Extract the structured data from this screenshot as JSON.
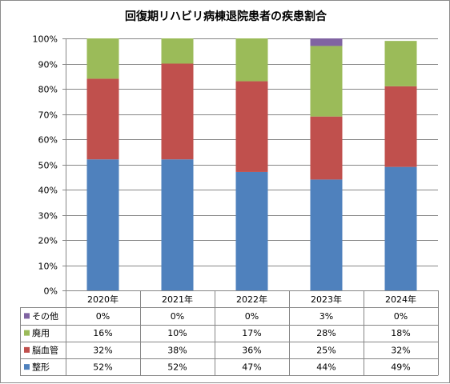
{
  "chart_data": {
    "type": "bar",
    "stacked": true,
    "percent": true,
    "title": "回復期リハビリ病棟退院患者の疾患割合",
    "categories": [
      "2020年",
      "2021年",
      "2022年",
      "2023年",
      "2024年"
    ],
    "ylim": [
      0,
      100
    ],
    "yticks": [
      "0%",
      "10%",
      "20%",
      "30%",
      "40%",
      "50%",
      "60%",
      "70%",
      "80%",
      "90%",
      "100%"
    ],
    "grid": true,
    "legend": "data-table",
    "series": [
      {
        "name": "整形",
        "color": "#4f81bd",
        "values": [
          52,
          52,
          47,
          44,
          49
        ],
        "labels": [
          "52%",
          "52%",
          "47%",
          "44%",
          "49%"
        ]
      },
      {
        "name": "脳血管",
        "color": "#c0504d",
        "values": [
          32,
          38,
          36,
          25,
          32
        ],
        "labels": [
          "32%",
          "38%",
          "36%",
          "25%",
          "32%"
        ]
      },
      {
        "name": "廃用",
        "color": "#9bbb59",
        "values": [
          16,
          10,
          17,
          28,
          18
        ],
        "labels": [
          "16%",
          "10%",
          "17%",
          "28%",
          "18%"
        ]
      },
      {
        "name": "その他",
        "color": "#8064a2",
        "values": [
          0,
          0,
          0,
          3,
          0
        ],
        "labels": [
          "0%",
          "0%",
          "0%",
          "3%",
          "0%"
        ]
      }
    ]
  }
}
